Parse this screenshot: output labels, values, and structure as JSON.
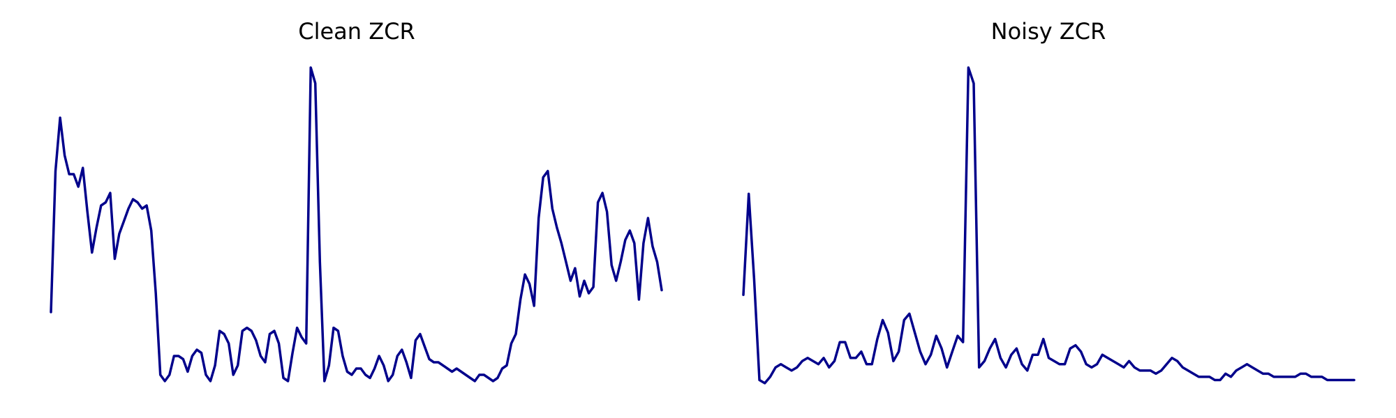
{
  "chart_data": [
    {
      "type": "line",
      "title": "Clean ZCR",
      "xlabel": "",
      "ylabel": "",
      "axes_visible": false,
      "grid": false,
      "color": "#00008B",
      "ylim": [
        0,
        1
      ],
      "series": [
        {
          "values": [
            0.22,
            0.67,
            0.84,
            0.72,
            0.66,
            0.66,
            0.62,
            0.68,
            0.54,
            0.41,
            0.49,
            0.56,
            0.57,
            0.6,
            0.39,
            0.47,
            0.51,
            0.55,
            0.58,
            0.57,
            0.55,
            0.56,
            0.48,
            0.28,
            0.02,
            0.0,
            0.02,
            0.08,
            0.08,
            0.07,
            0.03,
            0.08,
            0.1,
            0.09,
            0.02,
            0.0,
            0.05,
            0.16,
            0.15,
            0.12,
            0.02,
            0.05,
            0.16,
            0.17,
            0.16,
            0.13,
            0.08,
            0.06,
            0.15,
            0.16,
            0.12,
            0.01,
            0.0,
            0.09,
            0.17,
            0.14,
            0.12,
            1.0,
            0.95,
            0.38,
            0.0,
            0.05,
            0.17,
            0.16,
            0.08,
            0.03,
            0.02,
            0.04,
            0.04,
            0.02,
            0.01,
            0.04,
            0.08,
            0.05,
            0.0,
            0.02,
            0.08,
            0.1,
            0.06,
            0.01,
            0.13,
            0.15,
            0.11,
            0.07,
            0.06,
            0.06,
            0.05,
            0.04,
            0.03,
            0.04,
            0.03,
            0.02,
            0.01,
            0.0,
            0.02,
            0.02,
            0.01,
            0.0,
            0.01,
            0.04,
            0.05,
            0.12,
            0.15,
            0.26,
            0.34,
            0.31,
            0.24,
            0.52,
            0.65,
            0.67,
            0.55,
            0.49,
            0.44,
            0.38,
            0.32,
            0.36,
            0.27,
            0.32,
            0.28,
            0.3,
            0.57,
            0.6,
            0.54,
            0.37,
            0.32,
            0.38,
            0.45,
            0.48,
            0.44,
            0.26,
            0.44,
            0.52,
            0.43,
            0.38,
            0.29
          ]
        }
      ]
    },
    {
      "type": "line",
      "title": "Noisy ZCR",
      "xlabel": "",
      "ylabel": "",
      "axes_visible": false,
      "grid": false,
      "color": "#00008B",
      "ylim": [
        0,
        1
      ],
      "series": [
        {
          "values": [
            0.28,
            0.6,
            0.33,
            0.01,
            0.0,
            0.02,
            0.05,
            0.06,
            0.05,
            0.04,
            0.05,
            0.07,
            0.08,
            0.07,
            0.06,
            0.08,
            0.05,
            0.07,
            0.13,
            0.13,
            0.08,
            0.08,
            0.1,
            0.06,
            0.06,
            0.14,
            0.2,
            0.16,
            0.07,
            0.1,
            0.2,
            0.22,
            0.16,
            0.1,
            0.06,
            0.09,
            0.15,
            0.11,
            0.05,
            0.1,
            0.15,
            0.13,
            1.0,
            0.95,
            0.05,
            0.07,
            0.11,
            0.14,
            0.08,
            0.05,
            0.09,
            0.11,
            0.06,
            0.04,
            0.09,
            0.09,
            0.14,
            0.08,
            0.07,
            0.06,
            0.06,
            0.11,
            0.12,
            0.1,
            0.06,
            0.05,
            0.06,
            0.09,
            0.08,
            0.07,
            0.06,
            0.05,
            0.07,
            0.05,
            0.04,
            0.04,
            0.04,
            0.03,
            0.04,
            0.06,
            0.08,
            0.07,
            0.05,
            0.04,
            0.03,
            0.02,
            0.02,
            0.02,
            0.01,
            0.01,
            0.03,
            0.02,
            0.04,
            0.05,
            0.06,
            0.05,
            0.04,
            0.03,
            0.03,
            0.02,
            0.02,
            0.02,
            0.02,
            0.02,
            0.03,
            0.03,
            0.02,
            0.02,
            0.02,
            0.01,
            0.01,
            0.01,
            0.01,
            0.01,
            0.01
          ]
        }
      ]
    }
  ]
}
